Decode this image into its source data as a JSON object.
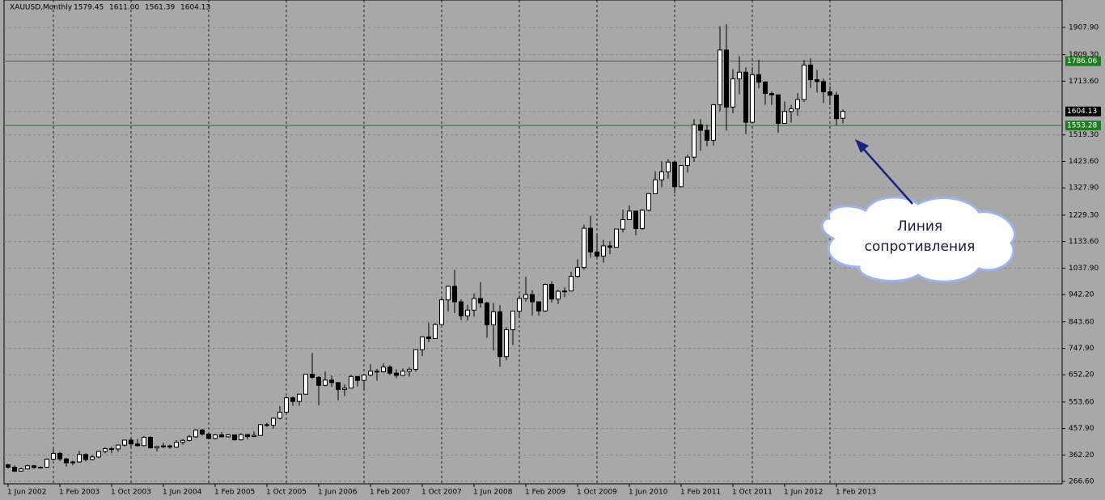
{
  "chart_data": {
    "type": "candlestick",
    "title": "XAUUSD,Monthly",
    "ohlc_labels": [
      "1579.45",
      "1611.00",
      "1561.39",
      "1604.13"
    ],
    "categories": [
      "2002-06",
      "2002-07",
      "2002-08",
      "2002-09",
      "2002-10",
      "2002-11",
      "2002-12",
      "2003-01",
      "2003-02",
      "2003-03",
      "2003-04",
      "2003-05",
      "2003-06",
      "2003-07",
      "2003-08",
      "2003-09",
      "2003-10",
      "2003-11",
      "2003-12",
      "2004-01",
      "2004-02",
      "2004-03",
      "2004-04",
      "2004-05",
      "2004-06",
      "2004-07",
      "2004-08",
      "2004-09",
      "2004-10",
      "2004-11",
      "2004-12",
      "2005-01",
      "2005-02",
      "2005-03",
      "2005-04",
      "2005-05",
      "2005-06",
      "2005-07",
      "2005-08",
      "2005-09",
      "2005-10",
      "2005-11",
      "2005-12",
      "2006-01",
      "2006-02",
      "2006-03",
      "2006-04",
      "2006-05",
      "2006-06",
      "2006-07",
      "2006-08",
      "2006-09",
      "2006-10",
      "2006-11",
      "2006-12",
      "2007-01",
      "2007-02",
      "2007-03",
      "2007-04",
      "2007-05",
      "2007-06",
      "2007-07",
      "2007-08",
      "2007-09",
      "2007-10",
      "2007-11",
      "2007-12",
      "2008-01",
      "2008-02",
      "2008-03",
      "2008-04",
      "2008-05",
      "2008-06",
      "2008-07",
      "2008-08",
      "2008-09",
      "2008-10",
      "2008-11",
      "2008-12",
      "2009-01",
      "2009-02",
      "2009-03",
      "2009-04",
      "2009-05",
      "2009-06",
      "2009-07",
      "2009-08",
      "2009-09",
      "2009-10",
      "2009-11",
      "2009-12",
      "2010-01",
      "2010-02",
      "2010-03",
      "2010-04",
      "2010-05",
      "2010-06",
      "2010-07",
      "2010-08",
      "2010-09",
      "2010-10",
      "2010-11",
      "2010-12",
      "2011-01",
      "2011-02",
      "2011-03",
      "2011-04",
      "2011-05",
      "2011-06",
      "2011-07",
      "2011-08",
      "2011-09",
      "2011-10",
      "2011-11",
      "2011-12",
      "2012-01",
      "2012-02",
      "2012-03",
      "2012-04",
      "2012-05",
      "2012-06",
      "2012-07",
      "2012-08",
      "2012-09",
      "2012-10",
      "2012-11",
      "2012-12",
      "2013-01",
      "2013-02",
      "2013-03"
    ],
    "open": [
      327,
      318,
      304,
      312,
      323,
      317,
      318,
      347,
      368,
      348,
      334,
      337,
      364,
      346,
      355,
      375,
      385,
      384,
      398,
      416,
      402,
      396,
      426,
      388,
      393,
      395,
      391,
      408,
      415,
      428,
      452,
      438,
      422,
      435,
      428,
      435,
      417,
      436,
      429,
      433,
      472,
      470,
      495,
      517,
      569,
      556,
      582,
      654,
      643,
      614,
      633,
      624,
      599,
      604,
      646,
      632,
      651,
      665,
      663,
      680,
      658,
      650,
      665,
      672,
      743,
      789,
      783,
      834,
      923,
      972,
      916,
      865,
      886,
      928,
      912,
      833,
      880,
      718,
      815,
      882,
      928,
      942,
      916,
      883,
      979,
      926,
      954,
      955,
      1008,
      1040,
      1182,
      1096,
      1081,
      1118,
      1113,
      1179,
      1213,
      1244,
      1181,
      1247,
      1307,
      1357,
      1386,
      1421,
      1332,
      1409,
      1439,
      1556,
      1536,
      1500,
      1628,
      1826,
      1620,
      1722,
      1746,
      1565,
      1737,
      1710,
      1669,
      1664,
      1561,
      1604,
      1614,
      1647,
      1772,
      1719,
      1712,
      1675,
      1663,
      1579.45
    ],
    "high": [
      330,
      324,
      316,
      327,
      326,
      321,
      350,
      383,
      373,
      352,
      341,
      377,
      368,
      362,
      378,
      390,
      392,
      400,
      417,
      427,
      420,
      431,
      430,
      396,
      406,
      400,
      416,
      420,
      435,
      456,
      457,
      443,
      438,
      445,
      438,
      436,
      441,
      438,
      447,
      474,
      479,
      497,
      539,
      574,
      574,
      584,
      657,
      731,
      647,
      664,
      650,
      624,
      617,
      652,
      647,
      656,
      690,
      674,
      693,
      687,
      672,
      675,
      680,
      744,
      791,
      841,
      839,
      929,
      975,
      1032,
      925,
      905,
      946,
      987,
      916,
      912,
      904,
      825,
      881,
      938,
      1006,
      958,
      915,
      982,
      990,
      959,
      968,
      1025,
      1070,
      1195,
      1227,
      1161,
      1140,
      1135,
      1180,
      1249,
      1265,
      1245,
      1251,
      1307,
      1388,
      1424,
      1431,
      1424,
      1411,
      1448,
      1576,
      1577,
      1556,
      1632,
      1912,
      1920,
      1757,
      1804,
      1763,
      1764,
      1791,
      1714,
      1676,
      1666,
      1640,
      1628,
      1671,
      1790,
      1796,
      1754,
      1723,
      1695,
      1675,
      1611
    ],
    "low": [
      313,
      300,
      302,
      310,
      313,
      314,
      316,
      342,
      340,
      320,
      325,
      334,
      339,
      342,
      350,
      368,
      368,
      374,
      392,
      390,
      392,
      394,
      386,
      375,
      387,
      384,
      388,
      399,
      411,
      424,
      432,
      420,
      419,
      426,
      425,
      415,
      414,
      418,
      428,
      432,
      464,
      457,
      490,
      515,
      540,
      540,
      582,
      637,
      542,
      610,
      608,
      560,
      575,
      603,
      610,
      602,
      647,
      631,
      660,
      651,
      640,
      648,
      645,
      663,
      720,
      770,
      786,
      834,
      881,
      875,
      850,
      848,
      862,
      895,
      786,
      740,
      681,
      705,
      760,
      857,
      917,
      866,
      866,
      880,
      913,
      908,
      933,
      954,
      1003,
      1032,
      1075,
      1075,
      1058,
      1088,
      1114,
      1167,
      1218,
      1157,
      1176,
      1243,
      1315,
      1330,
      1361,
      1308,
      1330,
      1383,
      1422,
      1462,
      1478,
      1481,
      1604,
      1535,
      1598,
      1666,
      1522,
      1563,
      1688,
      1628,
      1628,
      1527,
      1563,
      1564,
      1589,
      1639,
      1689,
      1672,
      1635,
      1627,
      1554,
      1561.39
    ],
    "close": [
      318,
      304,
      312,
      323,
      317,
      318,
      347,
      368,
      348,
      334,
      337,
      364,
      346,
      355,
      375,
      385,
      384,
      398,
      416,
      402,
      396,
      426,
      388,
      393,
      395,
      391,
      408,
      415,
      428,
      452,
      438,
      422,
      435,
      428,
      435,
      417,
      436,
      429,
      433,
      472,
      470,
      495,
      517,
      569,
      556,
      582,
      654,
      643,
      614,
      633,
      624,
      599,
      604,
      646,
      632,
      651,
      665,
      663,
      680,
      658,
      650,
      665,
      672,
      743,
      789,
      783,
      834,
      923,
      972,
      916,
      865,
      886,
      928,
      912,
      833,
      880,
      718,
      815,
      882,
      928,
      942,
      916,
      883,
      979,
      926,
      954,
      955,
      1008,
      1040,
      1182,
      1096,
      1081,
      1118,
      1113,
      1179,
      1213,
      1244,
      1181,
      1247,
      1307,
      1357,
      1386,
      1421,
      1332,
      1409,
      1439,
      1556,
      1536,
      1500,
      1628,
      1826,
      1620,
      1722,
      1746,
      1565,
      1737,
      1710,
      1669,
      1664,
      1561,
      1604,
      1614,
      1647,
      1772,
      1719,
      1712,
      1675,
      1663,
      1578,
      1604.13
    ],
    "xticks": [
      {
        "value": "2002-06",
        "label": "1 Jun 2002"
      },
      {
        "value": "2003-02",
        "label": "1 Feb 2003"
      },
      {
        "value": "2003-10",
        "label": "1 Oct 2003"
      },
      {
        "value": "2004-06",
        "label": "1 Jun 2004"
      },
      {
        "value": "2005-02",
        "label": "1 Feb 2005"
      },
      {
        "value": "2005-10",
        "label": "1 Oct 2005"
      },
      {
        "value": "2006-06",
        "label": "1 Jun 2006"
      },
      {
        "value": "2007-02",
        "label": "1 Feb 2007"
      },
      {
        "value": "2007-10",
        "label": "1 Oct 2007"
      },
      {
        "value": "2008-06",
        "label": "1 Jun 2008"
      },
      {
        "value": "2009-02",
        "label": "1 Feb 2009"
      },
      {
        "value": "2009-10",
        "label": "1 Oct 2009"
      },
      {
        "value": "2010-06",
        "label": "1 Jun 2010"
      },
      {
        "value": "2011-02",
        "label": "1 Feb 2011"
      },
      {
        "value": "2011-10",
        "label": "1 Oct 2011"
      },
      {
        "value": "2012-06",
        "label": "1 Jun 2012"
      },
      {
        "value": "2013-02",
        "label": "1 Feb 2013"
      }
    ],
    "ylim": [
      258,
      2007
    ],
    "yticks": [
      {
        "value": 266.6,
        "label": "266.60"
      },
      {
        "value": 362.2,
        "label": "362.20"
      },
      {
        "value": 457.9,
        "label": "457.90"
      },
      {
        "value": 553.6,
        "label": "553.60"
      },
      {
        "value": 652.2,
        "label": "652.20"
      },
      {
        "value": 747.9,
        "label": "747.90"
      },
      {
        "value": 843.6,
        "label": "843.60"
      },
      {
        "value": 942.2,
        "label": "942.20"
      },
      {
        "value": 1037.9,
        "label": "1037.90"
      },
      {
        "value": 1133.6,
        "label": "1133.60"
      },
      {
        "value": 1229.3,
        "label": "1229.30"
      },
      {
        "value": 1327.9,
        "label": "1327.90"
      },
      {
        "value": 1423.6,
        "label": "1423.60"
      },
      {
        "value": 1519.3,
        "label": "1519.30"
      },
      {
        "value": 1713.6,
        "label": "1713.60"
      },
      {
        "value": 1809.3,
        "label": "1809.30"
      },
      {
        "value": 1907.9,
        "label": "1907.90"
      }
    ],
    "grid": true,
    "hlines": [
      {
        "value": 1786.06,
        "label": "1786.06",
        "color": "#1e7d1e"
      },
      {
        "value": 1553.28,
        "label": "1553.28",
        "color": "#1e7d1e"
      }
    ],
    "price_marker": {
      "value": 1604.13,
      "label": "1604.13"
    },
    "annotation": "Линия сопротивления"
  }
}
